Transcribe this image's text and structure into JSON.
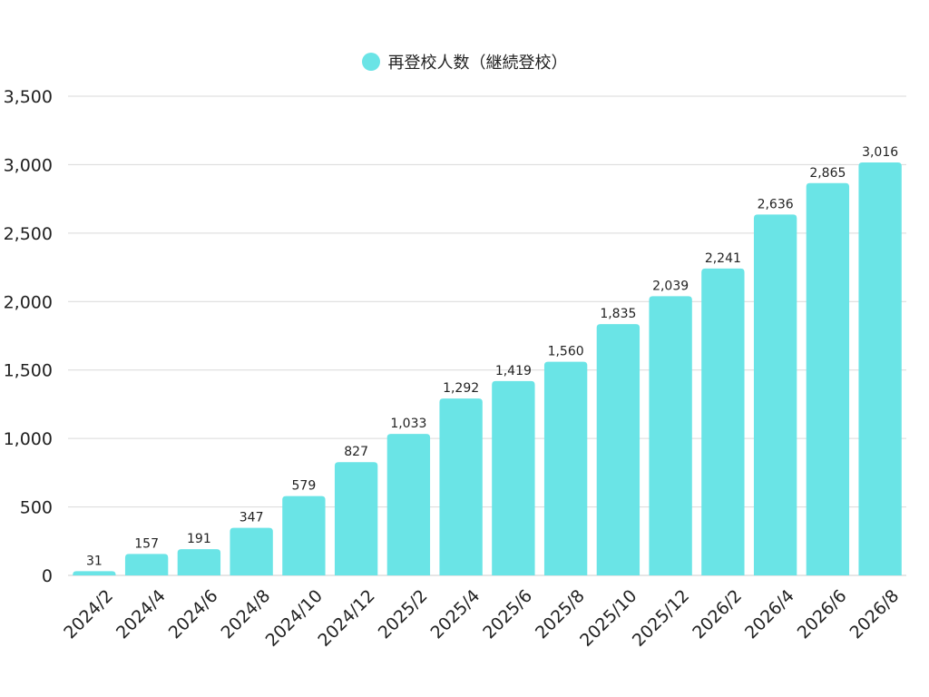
{
  "chart_data": {
    "type": "bar",
    "categories": [
      "2024/2",
      "2024/4",
      "2024/6",
      "2024/8",
      "2024/10",
      "2024/12",
      "2025/2",
      "2025/4",
      "2025/6",
      "2025/8",
      "2025/10",
      "2025/12",
      "2026/2",
      "2026/4",
      "2026/6",
      "2026/8"
    ],
    "series": [
      {
        "name": "再登校人数（継続登校）",
        "values": [
          31,
          157,
          191,
          347,
          579,
          827,
          1033,
          1292,
          1419,
          1560,
          1835,
          2039,
          2241,
          2636,
          2865,
          3016
        ],
        "data_labels": [
          "31",
          "157",
          "191",
          "347",
          "579",
          "827",
          "1,033",
          "1,292",
          "1,419",
          "1,560",
          "1,835",
          "2,039",
          "2,241",
          "2,636",
          "2,865",
          "3,016"
        ],
        "color": "#6ae4e6"
      }
    ],
    "y_ticks": [
      0,
      500,
      1000,
      1500,
      2000,
      2500,
      3000,
      3500
    ],
    "y_tick_labels": [
      "0",
      "500",
      "1,000",
      "1,500",
      "2,000",
      "2,500",
      "3,000",
      "3,500"
    ],
    "ylim": [
      0,
      3500
    ],
    "title": "",
    "xlabel": "",
    "ylabel": "",
    "grid": true,
    "legend_position": "top-center",
    "colors": {
      "bar": "#6ae4e6",
      "grid": "#d9d9d9",
      "text": "#222222"
    }
  }
}
